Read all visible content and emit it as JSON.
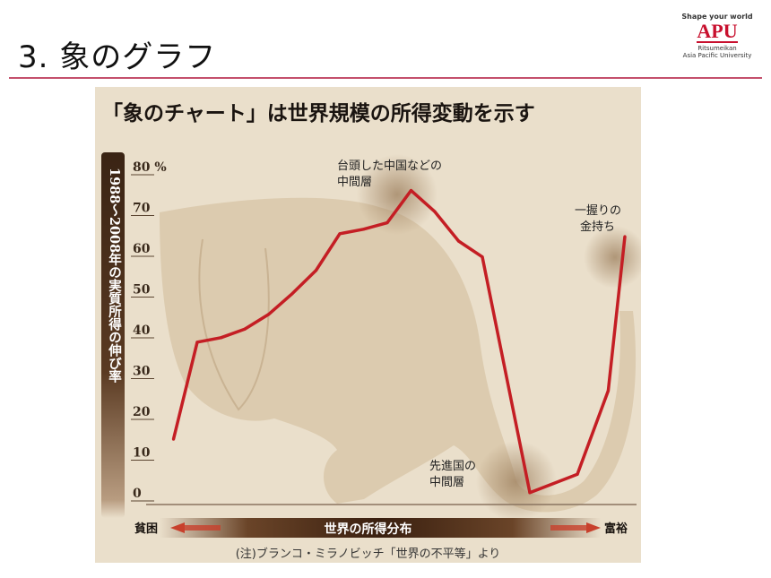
{
  "slide": {
    "title": "3. 象のグラフ"
  },
  "logo": {
    "tagline": "Shape your world",
    "mark": "APU",
    "university": [
      "Ritsumeikan",
      "Asia Pacific University"
    ]
  },
  "chart_data": {
    "type": "line",
    "title": "「象のチャート」は世界規模の所得変動を示す",
    "ylabel": "1988～2008年の実質所得の伸び率",
    "xlabel": "世界の所得分布",
    "x_left_label": "貧困",
    "x_right_label": "富裕",
    "y_unit": "%",
    "ylim": [
      0,
      80
    ],
    "yticks": [
      "0",
      "10",
      "20",
      "30",
      "40",
      "50",
      "60",
      "70",
      "80"
    ],
    "x": [
      5,
      10,
      15,
      20,
      25,
      30,
      35,
      40,
      45,
      50,
      55,
      60,
      65,
      70,
      80,
      90,
      96.5,
      100
    ],
    "values": [
      14.7,
      38.5,
      39.6,
      41.7,
      45.3,
      50.4,
      56.1,
      65.1,
      66.2,
      67.8,
      75.7,
      70.5,
      63.3,
      59.4,
      1.6,
      6.1,
      26.6,
      64.4
    ],
    "line_color": "#c41e24",
    "annotations": [
      {
        "text": [
          "台頭した中国などの",
          "中間層"
        ]
      },
      {
        "text": [
          "先進国の",
          "中間層"
        ]
      },
      {
        "text": [
          "一握りの",
          "金持ち"
        ]
      }
    ],
    "note": "(注)ブランコ・ミラノビッチ「世界の不平等」より"
  }
}
